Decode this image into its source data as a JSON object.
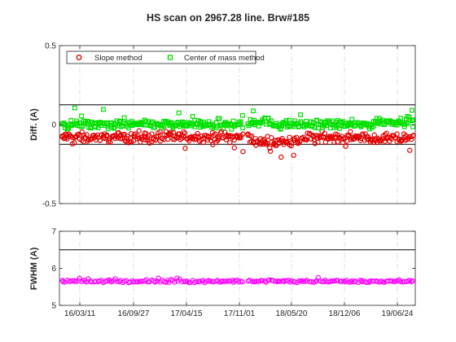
{
  "chart_data": [
    {
      "type": "scatter",
      "title": "HS scan on 2967.28 line. Brw#185",
      "ylabel": "Diff. (A)",
      "xlabel": "",
      "ylim": [
        -0.5,
        0.5
      ],
      "yticks": [
        -0.5,
        0,
        0.5
      ],
      "y_tick_labels": [
        "-0.5",
        "0",
        "0.5"
      ],
      "x_tick_labels": [],
      "grid": "x dash-dot",
      "legend": "top-left inside",
      "reference_lines": [
        0.125,
        -0.125
      ],
      "series": [
        {
          "name": "Slope method",
          "marker": "circle",
          "color": "#e00000",
          "baseline": -0.08,
          "spread": 0.045
        },
        {
          "name": "Center of mass method",
          "marker": "square",
          "color": "#00e000",
          "baseline": 0.0,
          "spread": 0.04
        }
      ]
    },
    {
      "type": "scatter",
      "title": "",
      "ylabel": "FWHM (A)",
      "xlabel": "",
      "ylim": [
        5,
        7
      ],
      "yticks": [
        5,
        6,
        7
      ],
      "y_tick_labels": [
        "5",
        "6",
        "7"
      ],
      "x_tick_labels": [
        "16/03/11",
        "16/09/27",
        "17/04/15",
        "17/11/01",
        "18/05/20",
        "18/12/06",
        "19/06/24"
      ],
      "grid": "x dash-dot",
      "reference_lines": [
        6.5
      ],
      "series": [
        {
          "name": "",
          "marker": "circle",
          "color": "#ff00ff",
          "baseline": 5.65,
          "spread": 0.05
        }
      ]
    }
  ]
}
